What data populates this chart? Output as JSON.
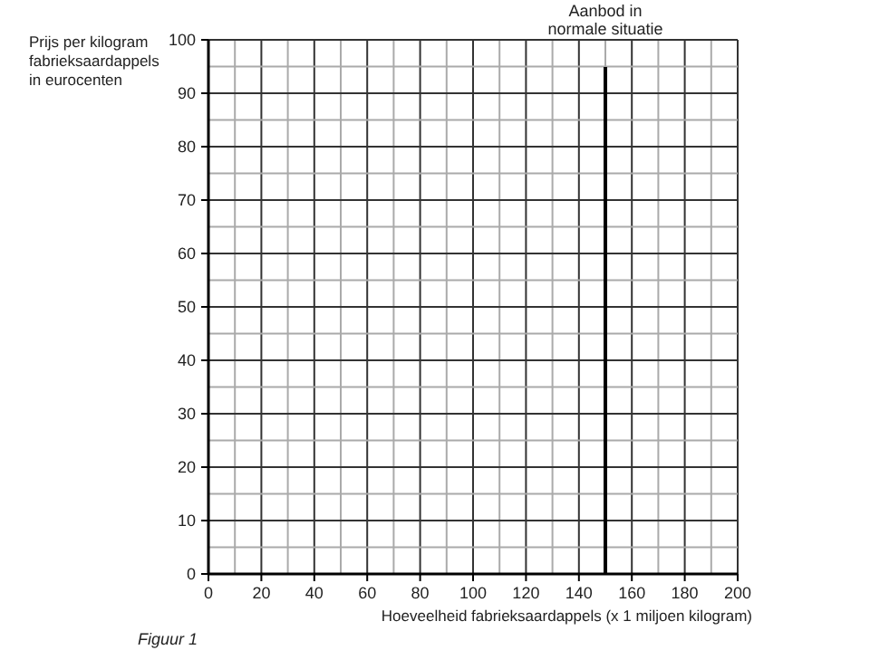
{
  "chart_data": {
    "type": "line",
    "ylabel": "Prijs per kilogram fabrieksaardappels in eurocenten",
    "xlabel": "Hoeveelheid fabrieksaardappels (x 1 miljoen kilogram)",
    "xlim": [
      0,
      200
    ],
    "xticks": [
      0,
      20,
      40,
      60,
      80,
      100,
      120,
      140,
      160,
      180,
      200
    ],
    "ylim": [
      0,
      100
    ],
    "yticks": [
      0,
      10,
      20,
      30,
      40,
      50,
      60,
      70,
      80,
      90,
      100
    ],
    "grid": true,
    "ref_lines": [
      {
        "axis": "x",
        "value": 150,
        "label": "Aanbod in normale situatie",
        "color": "#000000"
      }
    ],
    "annotations": [
      "Figuur 1"
    ]
  }
}
